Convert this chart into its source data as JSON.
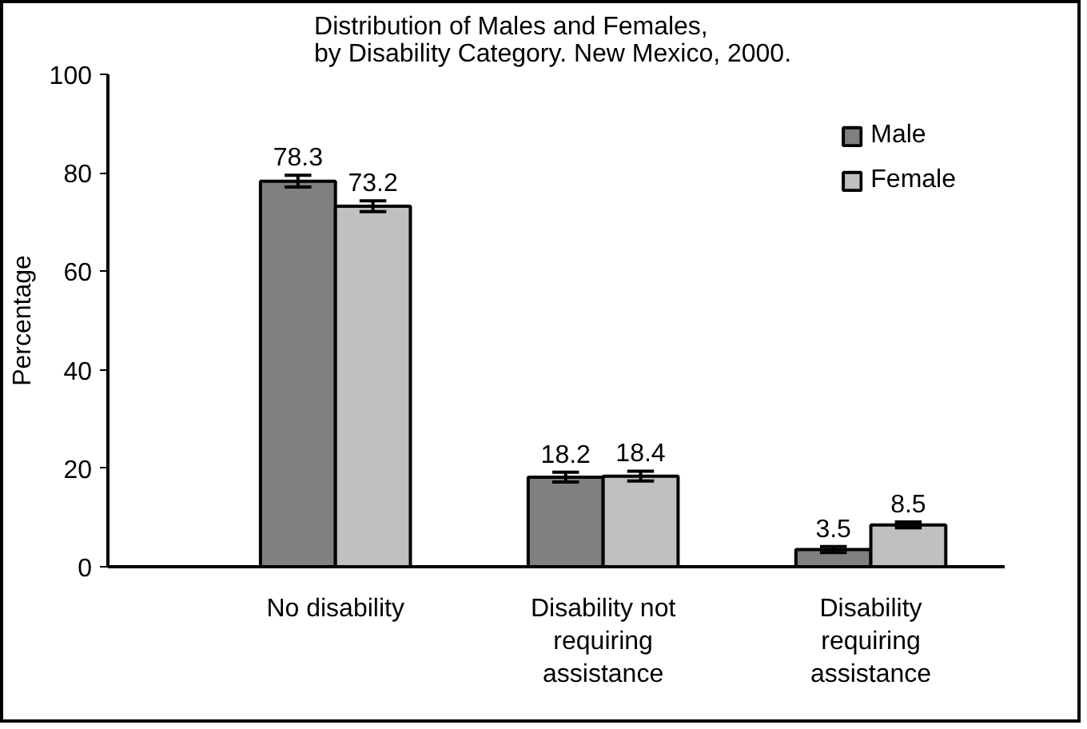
{
  "chart_data": {
    "type": "bar",
    "title": "Distribution of Males and Females,\nby Disability Category.  New Mexico, 2000.",
    "ylabel": "Percentage",
    "categories": [
      "No disability",
      "Disability not requiring assistance",
      "Disability requiring assistance"
    ],
    "series": [
      {
        "name": "Male",
        "color": "#808080",
        "values": [
          78.3,
          18.2,
          3.5
        ],
        "errors": [
          1.2,
          1.0,
          0.6
        ]
      },
      {
        "name": "Female",
        "color": "#c0c0c0",
        "values": [
          73.2,
          18.4,
          8.5
        ],
        "errors": [
          1.1,
          1.0,
          0.6
        ]
      }
    ],
    "ylim": [
      0,
      100
    ],
    "yticks": [
      0,
      20,
      40,
      60,
      80,
      100
    ],
    "data_labels": true,
    "legend": "top right",
    "grid": false
  }
}
